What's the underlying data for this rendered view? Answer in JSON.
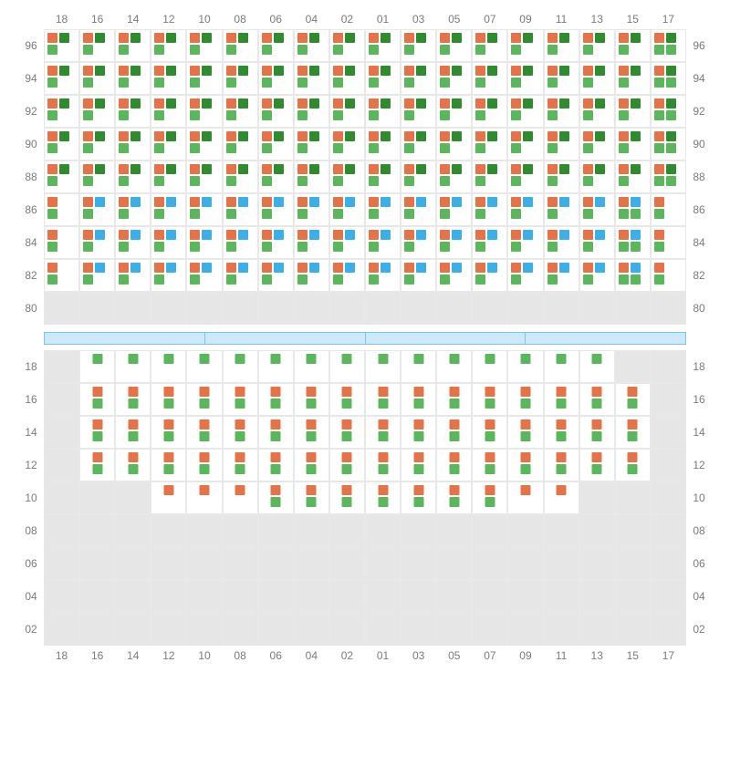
{
  "columns": [
    "18",
    "16",
    "14",
    "12",
    "10",
    "08",
    "06",
    "04",
    "02",
    "01",
    "03",
    "05",
    "07",
    "09",
    "11",
    "13",
    "15",
    "17"
  ],
  "style": {
    "colors": {
      "orange": "#e57347",
      "green": "#5bb75b",
      "darkgreen": "#2e8b2e",
      "blue": "#3bb0e8",
      "empty_bg": "#e6e6e6",
      "grid_border": "#e8e8e8",
      "label": "#7a7a7a",
      "divider_bg": "#cce9ff",
      "divider_border": "#7ac5f0",
      "bg": "#ffffff"
    },
    "marker_size": 11,
    "cell_min_height": 36,
    "label_fontsize": 12
  },
  "divider_segments": 4,
  "top": {
    "rows": [
      "96",
      "94",
      "92",
      "90",
      "88",
      "86",
      "84",
      "82",
      "80"
    ],
    "patterns": {
      "A": [
        [
          "tl",
          "orange"
        ],
        [
          "tr",
          "darkgreen"
        ],
        [
          "bl",
          "green"
        ]
      ],
      "Ae": [
        [
          "tl",
          "orange"
        ],
        [
          "tr",
          "darkgreen"
        ],
        [
          "bl",
          "green"
        ],
        [
          "br",
          "green"
        ]
      ],
      "B": [
        [
          "tl",
          "orange"
        ],
        [
          "tr",
          "blue"
        ],
        [
          "bl",
          "green"
        ]
      ],
      "Be": [
        [
          "tl",
          "orange"
        ],
        [
          "tr",
          "blue"
        ],
        [
          "bl",
          "green"
        ],
        [
          "br",
          "green"
        ]
      ],
      "C": [
        [
          "tl",
          "orange"
        ],
        [
          "bl",
          "green"
        ]
      ]
    },
    "cells": {
      "96": [
        "A",
        "A",
        "A",
        "A",
        "A",
        "A",
        "A",
        "A",
        "A",
        "A",
        "A",
        "A",
        "A",
        "A",
        "A",
        "A",
        "A",
        "Ae"
      ],
      "94": [
        "A",
        "A",
        "A",
        "A",
        "A",
        "A",
        "A",
        "A",
        "A",
        "A",
        "A",
        "A",
        "A",
        "A",
        "A",
        "A",
        "A",
        "Ae"
      ],
      "92": [
        "A",
        "A",
        "A",
        "A",
        "A",
        "A",
        "A",
        "A",
        "A",
        "A",
        "A",
        "A",
        "A",
        "A",
        "A",
        "A",
        "A",
        "Ae"
      ],
      "90": [
        "A",
        "A",
        "A",
        "A",
        "A",
        "A",
        "A",
        "A",
        "A",
        "A",
        "A",
        "A",
        "A",
        "A",
        "A",
        "A",
        "A",
        "Ae"
      ],
      "88": [
        "A",
        "A",
        "A",
        "A",
        "A",
        "A",
        "A",
        "A",
        "A",
        "A",
        "A",
        "A",
        "A",
        "A",
        "A",
        "A",
        "A",
        "Ae"
      ],
      "86": [
        "C",
        "B",
        "B",
        "B",
        "B",
        "B",
        "B",
        "B",
        "B",
        "B",
        "B",
        "B",
        "B",
        "B",
        "B",
        "B",
        "Be",
        "C"
      ],
      "84": [
        "C",
        "B",
        "B",
        "B",
        "B",
        "B",
        "B",
        "B",
        "B",
        "B",
        "B",
        "B",
        "B",
        "B",
        "B",
        "B",
        "Be",
        "C"
      ],
      "82": [
        "C",
        "B",
        "B",
        "B",
        "B",
        "B",
        "B",
        "B",
        "B",
        "B",
        "B",
        "B",
        "B",
        "B",
        "B",
        "B",
        "Be",
        "C"
      ],
      "80": [
        "",
        "",
        "",
        "",
        "",
        "",
        "",
        "",
        "",
        "",
        "",
        "",
        "",
        "",
        "",
        "",
        "",
        ""
      ]
    }
  },
  "bottom": {
    "rows": [
      "18",
      "16",
      "14",
      "12",
      "10",
      "08",
      "06",
      "04",
      "02"
    ],
    "patterns": {
      "G": [
        [
          "tc",
          "green"
        ]
      ],
      "D": [
        [
          "tc",
          "orange"
        ],
        [
          "bc",
          "green"
        ]
      ],
      "E": [
        [
          "tc",
          "orange"
        ]
      ]
    },
    "cells": {
      "18": [
        "",
        "G",
        "G",
        "G",
        "G",
        "G",
        "G",
        "G",
        "G",
        "G",
        "G",
        "G",
        "G",
        "G",
        "G",
        "G",
        "",
        ""
      ],
      "16": [
        "",
        "D",
        "D",
        "D",
        "D",
        "D",
        "D",
        "D",
        "D",
        "D",
        "D",
        "D",
        "D",
        "D",
        "D",
        "D",
        "D",
        ""
      ],
      "14": [
        "",
        "D",
        "D",
        "D",
        "D",
        "D",
        "D",
        "D",
        "D",
        "D",
        "D",
        "D",
        "D",
        "D",
        "D",
        "D",
        "D",
        ""
      ],
      "12": [
        "",
        "D",
        "D",
        "D",
        "D",
        "D",
        "D",
        "D",
        "D",
        "D",
        "D",
        "D",
        "D",
        "D",
        "D",
        "D",
        "D",
        ""
      ],
      "10": [
        "",
        "",
        "",
        "E",
        "E",
        "E",
        "D",
        "D",
        "D",
        "D",
        "D",
        "D",
        "D",
        "E",
        "E",
        "",
        "",
        ""
      ],
      "08": [
        "",
        "",
        "",
        "",
        "",
        "",
        "",
        "",
        "",
        "",
        "",
        "",
        "",
        "",
        "",
        "",
        "",
        ""
      ],
      "06": [
        "",
        "",
        "",
        "",
        "",
        "",
        "",
        "",
        "",
        "",
        "",
        "",
        "",
        "",
        "",
        "",
        "",
        ""
      ],
      "04": [
        "",
        "",
        "",
        "",
        "",
        "",
        "",
        "",
        "",
        "",
        "",
        "",
        "",
        "",
        "",
        "",
        "",
        ""
      ],
      "02": [
        "",
        "",
        "",
        "",
        "",
        "",
        "",
        "",
        "",
        "",
        "",
        "",
        "",
        "",
        "",
        "",
        "",
        ""
      ]
    }
  }
}
